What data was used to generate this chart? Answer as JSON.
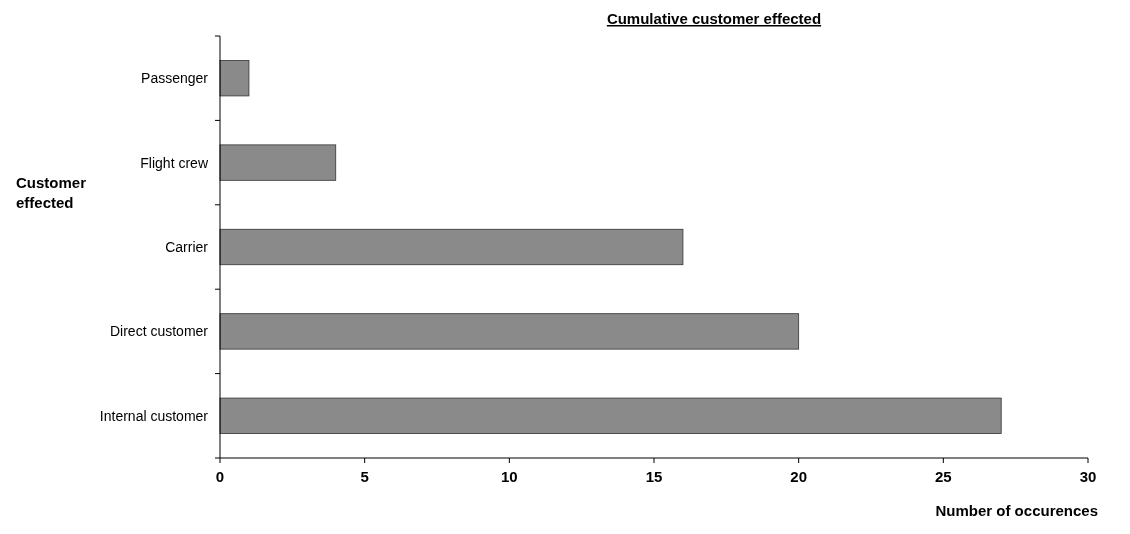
{
  "chart_data": {
    "type": "bar",
    "orientation": "horizontal",
    "title": "Cumulative customer effected",
    "xlabel": "Number of occurences",
    "ylabel": "Customer effected",
    "categories": [
      "Passenger",
      "Flight crew",
      "Carrier",
      "Direct customer",
      "Internal customer"
    ],
    "values": [
      1,
      4,
      16,
      20,
      27
    ],
    "color": "#8a8a8a",
    "xlim": [
      0,
      30
    ],
    "xticks": [
      0,
      5,
      10,
      15,
      20,
      25,
      30
    ],
    "grid": false
  }
}
